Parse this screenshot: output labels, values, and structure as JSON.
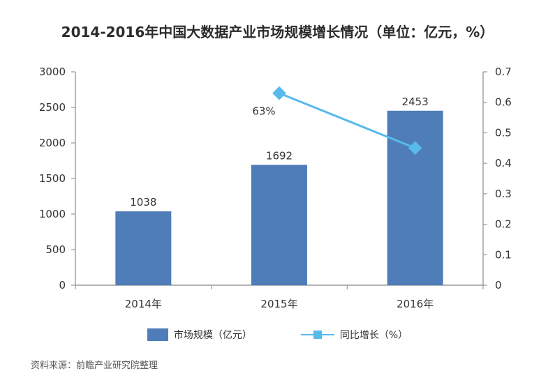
{
  "title": "2014-2016年中国大数据产业市场规模增长情况（单位：亿元，%）",
  "legend": {
    "bar": "市场规模（亿元）",
    "line": "同比增长（%）"
  },
  "source": "资料来源：前瞻产业研究院整理",
  "colors": {
    "bar": "#4f7db8",
    "line": "#58b9eb",
    "axis": "#999999",
    "text": "#333333"
  },
  "chart_data": {
    "type": "bar",
    "categories": [
      "2014年",
      "2015年",
      "2016年"
    ],
    "series": [
      {
        "name": "市场规模（亿元）",
        "type": "bar",
        "axis": "left",
        "values": [
          1038,
          1692,
          2453
        ],
        "data_labels": [
          "1038",
          "1692",
          "2453"
        ]
      },
      {
        "name": "同比增长（%）",
        "type": "line",
        "axis": "right",
        "values": [
          null,
          0.63,
          0.45
        ],
        "data_labels": [
          null,
          "63%",
          null
        ]
      }
    ],
    "title": "2014-2016年中国大数据产业市场规模增长情况（单位：亿元，%）",
    "ylim_left": [
      0,
      3000
    ],
    "ylim_right": [
      0,
      0.7
    ],
    "y_ticks_left": [
      0,
      500,
      1000,
      1500,
      2000,
      2500,
      3000
    ],
    "y_ticks_right": [
      0,
      0.1,
      0.2,
      0.3,
      0.4,
      0.5,
      0.6,
      0.7
    ],
    "grid": false,
    "legend_position": "bottom"
  }
}
